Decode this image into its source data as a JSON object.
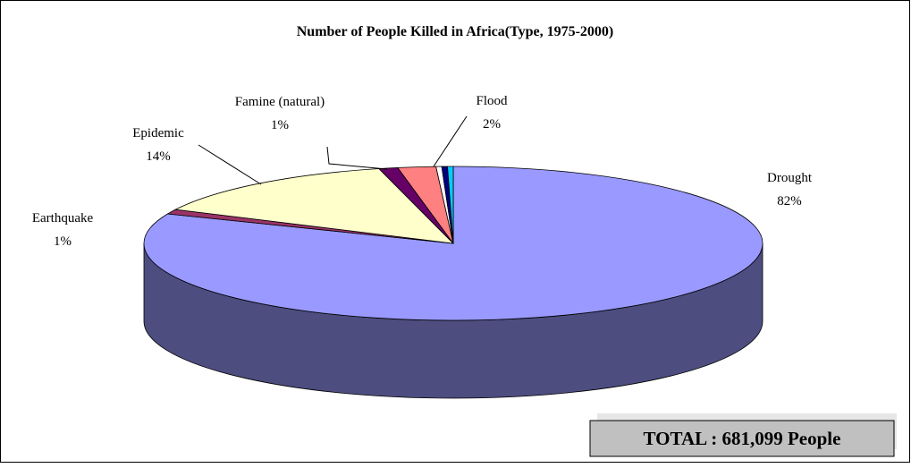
{
  "chart_data": {
    "type": "pie",
    "title": "Number of People Killed in Africa(Type, 1975-2000)",
    "categories": [
      "Drought",
      "Earthquake",
      "Epidemic",
      "Famine (natural)",
      "Flood",
      null,
      null,
      null
    ],
    "values": [
      82,
      1,
      14,
      1,
      2,
      0.3,
      0.3,
      0.3
    ],
    "value_labels": [
      "82%",
      "1%",
      "14%",
      "1%",
      "2%",
      null,
      null,
      null
    ],
    "colors": [
      "#9999ff",
      "#993366",
      "#ffffcc",
      "#660066",
      "#ff8080",
      "#ffffff",
      "#000080",
      "#00ccff"
    ],
    "annotation": "TOTAL : 681,099 People"
  }
}
